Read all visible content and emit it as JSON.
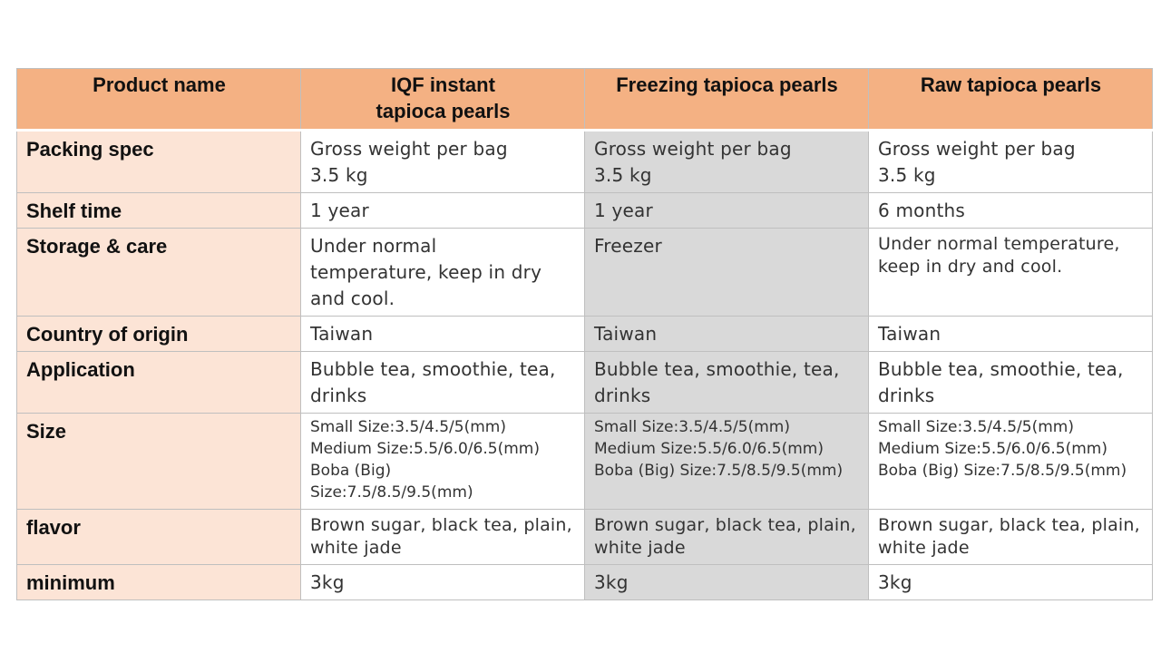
{
  "table": {
    "headers": {
      "label": "Product name",
      "col1_line1": "IQF instant",
      "col1_line2": "tapioca pearls",
      "col2": "Freezing tapioca pearls",
      "col3": "Raw tapioca pearls"
    },
    "rows": {
      "packing": {
        "label": "Packing spec",
        "c1": [
          "Gross weight per bag",
          "3.5 kg"
        ],
        "c2": [
          "Gross weight per bag",
          "3.5 kg"
        ],
        "c3": [
          "Gross weight per bag",
          "3.5 kg"
        ]
      },
      "shelf": {
        "label": "Shelf time",
        "c1": "1 year",
        "c2": "1 year",
        "c3": "6 months"
      },
      "storage": {
        "label": "Storage & care",
        "c1": [
          "Under normal",
          "temperature, keep in dry",
          "and cool."
        ],
        "c2": "Freezer",
        "c3": [
          "Under normal temperature,",
          "keep in dry and cool."
        ]
      },
      "origin": {
        "label": "Country of origin",
        "c1": "Taiwan",
        "c2": "Taiwan",
        "c3": "Taiwan"
      },
      "application": {
        "label": "Application",
        "c1": [
          "Bubble tea, smoothie, tea,",
          "drinks"
        ],
        "c2": [
          "Bubble tea, smoothie, tea,",
          "drinks"
        ],
        "c3": [
          "Bubble tea, smoothie, tea,",
          "drinks"
        ]
      },
      "size": {
        "label": "Size",
        "c1": [
          "Small Size:3.5/4.5/5(mm)",
          "Medium Size:5.5/6.0/6.5(mm)",
          "Boba (Big)",
          "Size:7.5/8.5/9.5(mm)"
        ],
        "c2": [
          "Small Size:3.5/4.5/5(mm)",
          "Medium Size:5.5/6.0/6.5(mm)",
          "Boba (Big) Size:7.5/8.5/9.5(mm)"
        ],
        "c3": [
          "Small Size:3.5/4.5/5(mm)",
          "Medium Size:5.5/6.0/6.5(mm)",
          "Boba (Big) Size:7.5/8.5/9.5(mm)"
        ]
      },
      "flavor": {
        "label": "flavor",
        "c1": [
          "Brown sugar, black tea, plain,",
          "white jade"
        ],
        "c2": [
          "Brown sugar, black tea, plain,",
          "white jade"
        ],
        "c3": [
          "Brown sugar, black tea, plain,",
          "white jade"
        ]
      },
      "minimum": {
        "label": "minimum",
        "c1": "3kg",
        "c2": "3kg",
        "c3": "3kg"
      }
    },
    "colors": {
      "header_bg": "#f4b183",
      "label_bg": "#fce4d6",
      "highlight_col_bg": "#d9d9d9",
      "border": "#bfbfbf"
    }
  }
}
